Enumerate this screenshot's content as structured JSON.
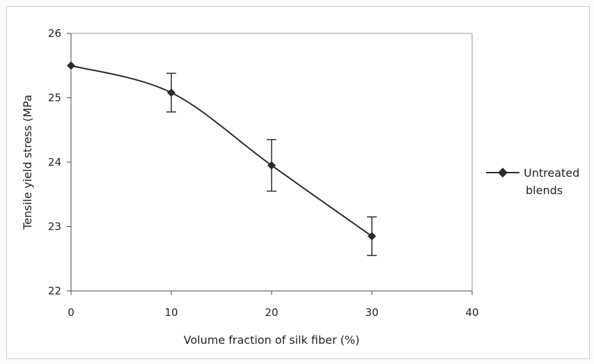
{
  "chart_data": {
    "type": "line",
    "title": "",
    "xlabel": "Volume fraction of silk fiber (%)",
    "ylabel": "Tensile yield stress (MPa",
    "xlim": [
      0,
      40
    ],
    "ylim": [
      22,
      26
    ],
    "xticks": [
      0,
      10,
      20,
      30,
      40
    ],
    "yticks": [
      22,
      23,
      24,
      25,
      26
    ],
    "grid": false,
    "legend_position": "right",
    "series": [
      {
        "name": "Untreated blends",
        "marker": "diamond",
        "color": "#2a2a2a",
        "x": [
          0,
          10,
          20,
          30
        ],
        "y": [
          25.5,
          25.08,
          23.95,
          22.85
        ],
        "error": [
          0,
          0.3,
          0.4,
          0.3
        ]
      }
    ],
    "legend_lines": [
      "Untreated",
      "blends"
    ]
  }
}
